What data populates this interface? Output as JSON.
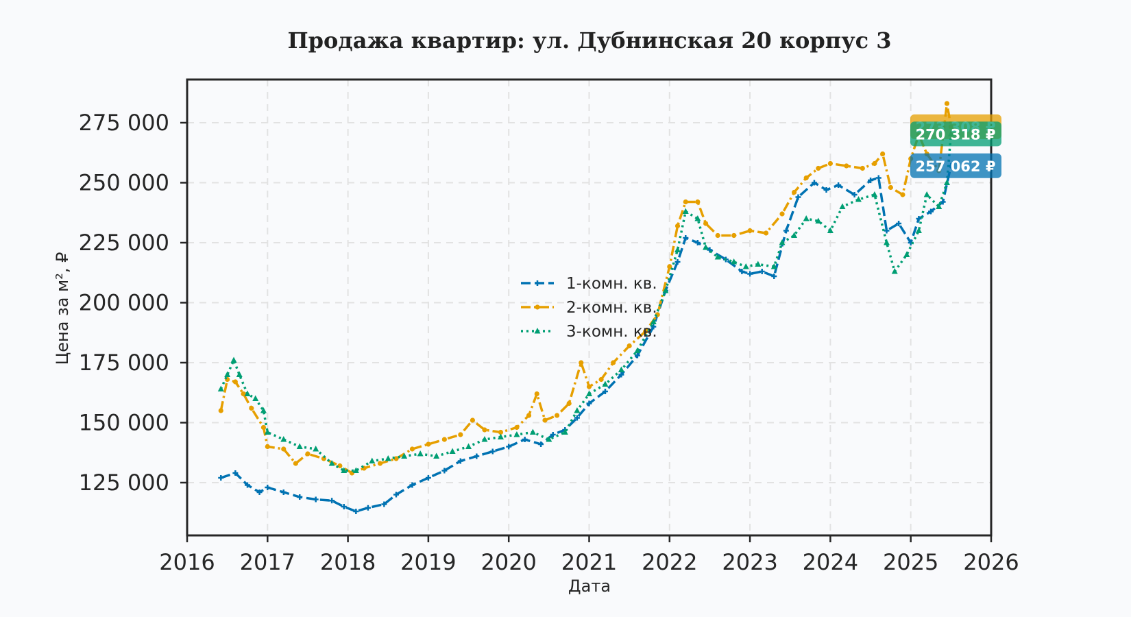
{
  "chart_data": {
    "type": "line",
    "title": "Продажа квартир: ул. Дубнинская 20 корпус 3",
    "xlabel": "Дата",
    "ylabel": "Цена за м², ₽",
    "xlim": [
      2016,
      2026
    ],
    "ylim": [
      103000,
      293000
    ],
    "x_ticks": [
      2016,
      2017,
      2018,
      2019,
      2020,
      2021,
      2022,
      2023,
      2024,
      2025,
      2026
    ],
    "y_ticks": [
      {
        "value": 125000,
        "label": "125 000"
      },
      {
        "value": 150000,
        "label": "150 000"
      },
      {
        "value": 175000,
        "label": "175 000"
      },
      {
        "value": 200000,
        "label": "200 000"
      },
      {
        "value": 225000,
        "label": "225 000"
      },
      {
        "value": 250000,
        "label": "250 000"
      },
      {
        "value": 275000,
        "label": "275 000"
      }
    ],
    "grid": true,
    "legend_position": "center",
    "series": [
      {
        "name": "1-комн. кв.",
        "color": "#0072b2",
        "style": "dashed",
        "marker": "plus",
        "last_label": "257 062 ₽",
        "points": [
          [
            2016.42,
            127000
          ],
          [
            2016.6,
            129000
          ],
          [
            2016.75,
            124000
          ],
          [
            2016.9,
            121000
          ],
          [
            2017.0,
            123000
          ],
          [
            2017.2,
            121000
          ],
          [
            2017.4,
            119000
          ],
          [
            2017.6,
            118000
          ],
          [
            2017.8,
            117500
          ],
          [
            2017.95,
            115000
          ],
          [
            2018.1,
            113000
          ],
          [
            2018.25,
            114500
          ],
          [
            2018.45,
            116000
          ],
          [
            2018.6,
            120000
          ],
          [
            2018.8,
            124000
          ],
          [
            2019.0,
            127000
          ],
          [
            2019.2,
            130000
          ],
          [
            2019.4,
            134000
          ],
          [
            2019.6,
            136000
          ],
          [
            2019.8,
            138000
          ],
          [
            2020.0,
            140000
          ],
          [
            2020.2,
            143000
          ],
          [
            2020.4,
            141000
          ],
          [
            2020.55,
            145000
          ],
          [
            2020.7,
            147000
          ],
          [
            2020.85,
            152000
          ],
          [
            2021.0,
            158000
          ],
          [
            2021.2,
            163000
          ],
          [
            2021.4,
            170000
          ],
          [
            2021.6,
            178000
          ],
          [
            2021.8,
            190000
          ],
          [
            2021.95,
            205000
          ],
          [
            2022.1,
            217000
          ],
          [
            2022.2,
            227000
          ],
          [
            2022.35,
            225000
          ],
          [
            2022.5,
            222000
          ],
          [
            2022.7,
            218000
          ],
          [
            2022.9,
            213000
          ],
          [
            2023.0,
            212000
          ],
          [
            2023.15,
            213000
          ],
          [
            2023.3,
            211000
          ],
          [
            2023.45,
            230000
          ],
          [
            2023.6,
            244000
          ],
          [
            2023.8,
            250000
          ],
          [
            2023.95,
            247000
          ],
          [
            2024.1,
            249000
          ],
          [
            2024.3,
            245000
          ],
          [
            2024.5,
            251000
          ],
          [
            2024.6,
            252000
          ],
          [
            2024.7,
            230000
          ],
          [
            2024.85,
            233000
          ],
          [
            2025.0,
            225000
          ],
          [
            2025.1,
            235000
          ],
          [
            2025.25,
            238000
          ],
          [
            2025.4,
            242000
          ],
          [
            2025.5,
            257062
          ]
        ]
      },
      {
        "name": "2-комн. кв.",
        "color": "#e69f00",
        "style": "dashdot",
        "marker": "dot",
        "last_label": "273 308 ₽",
        "points": [
          [
            2016.42,
            155000
          ],
          [
            2016.5,
            168000
          ],
          [
            2016.6,
            167000
          ],
          [
            2016.7,
            162000
          ],
          [
            2016.8,
            156000
          ],
          [
            2016.95,
            148000
          ],
          [
            2017.0,
            140000
          ],
          [
            2017.2,
            139000
          ],
          [
            2017.35,
            133000
          ],
          [
            2017.5,
            137000
          ],
          [
            2017.7,
            135000
          ],
          [
            2017.9,
            132000
          ],
          [
            2018.05,
            129000
          ],
          [
            2018.2,
            131000
          ],
          [
            2018.4,
            133000
          ],
          [
            2018.6,
            135000
          ],
          [
            2018.8,
            139000
          ],
          [
            2019.0,
            141000
          ],
          [
            2019.2,
            143000
          ],
          [
            2019.4,
            145000
          ],
          [
            2019.55,
            151000
          ],
          [
            2019.7,
            147000
          ],
          [
            2019.9,
            146000
          ],
          [
            2020.1,
            148000
          ],
          [
            2020.25,
            153000
          ],
          [
            2020.35,
            162000
          ],
          [
            2020.45,
            151000
          ],
          [
            2020.6,
            153000
          ],
          [
            2020.75,
            158000
          ],
          [
            2020.9,
            175000
          ],
          [
            2021.0,
            165000
          ],
          [
            2021.15,
            168000
          ],
          [
            2021.3,
            175000
          ],
          [
            2021.5,
            182000
          ],
          [
            2021.7,
            188000
          ],
          [
            2021.85,
            195000
          ],
          [
            2022.0,
            215000
          ],
          [
            2022.1,
            232000
          ],
          [
            2022.2,
            242000
          ],
          [
            2022.35,
            242000
          ],
          [
            2022.45,
            233000
          ],
          [
            2022.6,
            228000
          ],
          [
            2022.8,
            228000
          ],
          [
            2023.0,
            230000
          ],
          [
            2023.2,
            229000
          ],
          [
            2023.4,
            237000
          ],
          [
            2023.55,
            246000
          ],
          [
            2023.7,
            252000
          ],
          [
            2023.85,
            256000
          ],
          [
            2024.0,
            258000
          ],
          [
            2024.2,
            257000
          ],
          [
            2024.4,
            256000
          ],
          [
            2024.55,
            258000
          ],
          [
            2024.65,
            262000
          ],
          [
            2024.75,
            248000
          ],
          [
            2024.9,
            245000
          ],
          [
            2025.0,
            260000
          ],
          [
            2025.1,
            270000
          ],
          [
            2025.2,
            262000
          ],
          [
            2025.35,
            255000
          ],
          [
            2025.45,
            283000
          ],
          [
            2025.5,
            273308
          ]
        ]
      },
      {
        "name": "3-комн. кв.",
        "color": "#009e73",
        "style": "dotted",
        "marker": "triangle",
        "last_label": "270 318 ₽",
        "points": [
          [
            2016.42,
            164000
          ],
          [
            2016.5,
            170000
          ],
          [
            2016.58,
            176000
          ],
          [
            2016.65,
            170000
          ],
          [
            2016.75,
            162000
          ],
          [
            2016.85,
            160000
          ],
          [
            2016.95,
            155000
          ],
          [
            2017.0,
            146000
          ],
          [
            2017.2,
            143000
          ],
          [
            2017.4,
            140000
          ],
          [
            2017.6,
            139000
          ],
          [
            2017.8,
            133000
          ],
          [
            2017.95,
            130000
          ],
          [
            2018.1,
            130000
          ],
          [
            2018.3,
            134000
          ],
          [
            2018.5,
            135000
          ],
          [
            2018.7,
            136000
          ],
          [
            2018.9,
            137000
          ],
          [
            2019.1,
            136000
          ],
          [
            2019.3,
            138000
          ],
          [
            2019.5,
            140000
          ],
          [
            2019.7,
            143000
          ],
          [
            2019.9,
            144000
          ],
          [
            2020.1,
            145000
          ],
          [
            2020.3,
            146000
          ],
          [
            2020.5,
            143000
          ],
          [
            2020.7,
            146000
          ],
          [
            2020.85,
            155000
          ],
          [
            2021.0,
            162000
          ],
          [
            2021.2,
            166000
          ],
          [
            2021.4,
            172000
          ],
          [
            2021.6,
            180000
          ],
          [
            2021.8,
            192000
          ],
          [
            2021.95,
            205000
          ],
          [
            2022.1,
            222000
          ],
          [
            2022.2,
            238000
          ],
          [
            2022.35,
            235000
          ],
          [
            2022.45,
            223000
          ],
          [
            2022.6,
            219000
          ],
          [
            2022.8,
            217000
          ],
          [
            2022.95,
            215000
          ],
          [
            2023.1,
            216000
          ],
          [
            2023.3,
            215000
          ],
          [
            2023.4,
            225000
          ],
          [
            2023.55,
            228000
          ],
          [
            2023.7,
            235000
          ],
          [
            2023.85,
            234000
          ],
          [
            2024.0,
            230000
          ],
          [
            2024.15,
            240000
          ],
          [
            2024.35,
            243000
          ],
          [
            2024.55,
            245000
          ],
          [
            2024.7,
            225000
          ],
          [
            2024.8,
            213000
          ],
          [
            2024.95,
            220000
          ],
          [
            2025.1,
            230000
          ],
          [
            2025.2,
            245000
          ],
          [
            2025.35,
            240000
          ],
          [
            2025.45,
            250000
          ],
          [
            2025.5,
            270318
          ]
        ]
      }
    ]
  }
}
